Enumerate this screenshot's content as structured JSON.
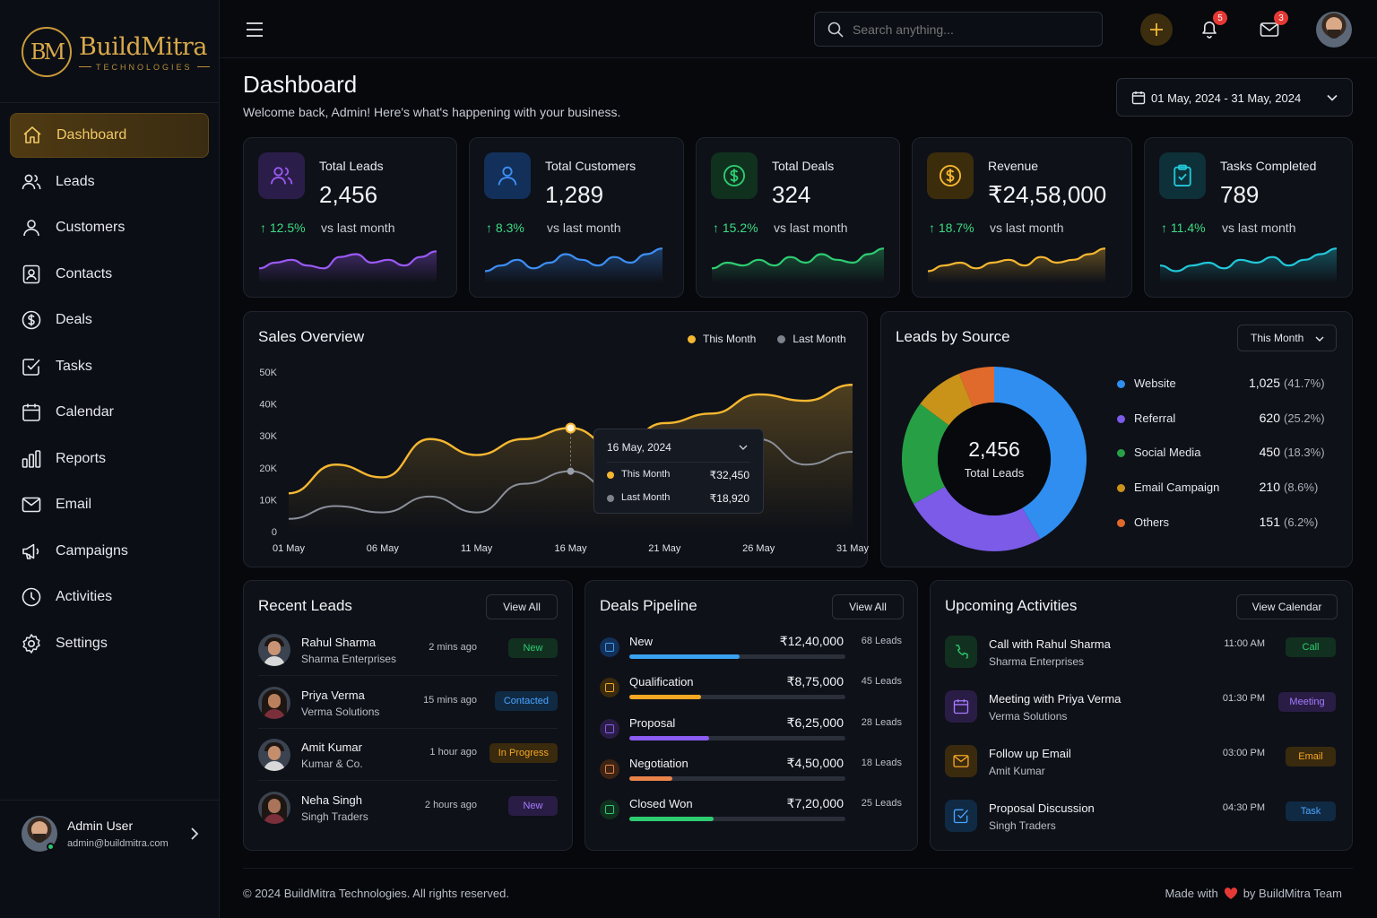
{
  "brand": {
    "title": "BuildMitra",
    "subtitle": "TECHNOLOGIES",
    "mark": "BM"
  },
  "nav": [
    {
      "label": "Dashboard",
      "icon": "home-icon",
      "active": true
    },
    {
      "label": "Leads",
      "icon": "users-icon"
    },
    {
      "label": "Customers",
      "icon": "user-icon"
    },
    {
      "label": "Contacts",
      "icon": "contact-card-icon"
    },
    {
      "label": "Deals",
      "icon": "dollar-circle-icon"
    },
    {
      "label": "Tasks",
      "icon": "checkbox-icon"
    },
    {
      "label": "Calendar",
      "icon": "calendar-icon"
    },
    {
      "label": "Reports",
      "icon": "bar-chart-icon"
    },
    {
      "label": "Email",
      "icon": "mail-icon"
    },
    {
      "label": "Campaigns",
      "icon": "megaphone-icon"
    },
    {
      "label": "Activities",
      "icon": "clock-icon"
    },
    {
      "label": "Settings",
      "icon": "gear-icon"
    }
  ],
  "user": {
    "name": "Admin User",
    "email": "admin@buildmitra.com"
  },
  "topbar": {
    "search_placeholder": "Search anything...",
    "notifications_count": "5",
    "messages_count": "3"
  },
  "header": {
    "title": "Dashboard",
    "subtitle": "Welcome back, Admin! Here's what's happening with your business.",
    "date_range": "01 May, 2024 - 31 May, 2024"
  },
  "stats": [
    {
      "label": "Total Leads",
      "value": "2,456",
      "change": "12.5%",
      "vs": "vs last month",
      "color": "#9b59f5",
      "icon": "users-icon"
    },
    {
      "label": "Total Customers",
      "value": "1,289",
      "change": "8.3%",
      "vs": "vs last month",
      "color": "#3d8ff5",
      "icon": "user-icon"
    },
    {
      "label": "Total Deals",
      "value": "324",
      "change": "15.2%",
      "vs": "vs last month",
      "color": "#2ecc71",
      "icon": "dollar-circle-icon"
    },
    {
      "label": "Revenue",
      "value": "₹24,58,000",
      "change": "18.7%",
      "vs": "vs last month",
      "color": "#f5b731",
      "icon": "dollar-circle-icon"
    },
    {
      "label": "Tasks Completed",
      "value": "789",
      "change": "11.4%",
      "vs": "vs last month",
      "color": "#22c7d9",
      "icon": "clipboard-check-icon"
    }
  ],
  "sales": {
    "title": "Sales Overview",
    "legend_this": "This Month",
    "legend_last": "Last Month",
    "tooltip": {
      "date": "16 May, 2024",
      "this_label": "This Month",
      "this_value": "₹32,450",
      "last_label": "Last Month",
      "last_value": "₹18,920"
    }
  },
  "chart_data": {
    "type": "line",
    "x": [
      "01 May",
      "03 May",
      "06 May",
      "08 May",
      "11 May",
      "14 May",
      "16 May",
      "18 May",
      "21 May",
      "23 May",
      "26 May",
      "28 May",
      "31 May"
    ],
    "xticks": [
      "01 May",
      "06 May",
      "11 May",
      "16 May",
      "21 May",
      "26 May",
      "31 May"
    ],
    "yticks": [
      "0",
      "10K",
      "20K",
      "30K",
      "40K",
      "50K"
    ],
    "ylim": [
      0,
      50000
    ],
    "series": [
      {
        "name": "This Month",
        "color": "#f5b731",
        "values": [
          12000,
          21000,
          17000,
          29000,
          24000,
          29000,
          32450,
          26000,
          34000,
          37000,
          43000,
          41000,
          46000
        ]
      },
      {
        "name": "Last Month",
        "color": "#8a8f99",
        "values": [
          4000,
          8000,
          6000,
          11000,
          6000,
          15000,
          18920,
          12000,
          21000,
          18000,
          29000,
          21000,
          25000
        ]
      }
    ]
  },
  "leads_source": {
    "title": "Leads by Source",
    "filter": "This Month",
    "total": "2,456",
    "total_label": "Total Leads",
    "items": [
      {
        "name": "Website",
        "value": "1,025",
        "pct": "(41.7%)",
        "color": "#2f8ef0",
        "fraction": 0.417
      },
      {
        "name": "Referral",
        "value": "620",
        "pct": "(25.2%)",
        "color": "#7b5be8",
        "fraction": 0.252
      },
      {
        "name": "Social Media",
        "value": "450",
        "pct": "(18.3%)",
        "color": "#27a045",
        "fraction": 0.183
      },
      {
        "name": "Email Campaign",
        "value": "210",
        "pct": "(8.6%)",
        "color": "#c9931a",
        "fraction": 0.086
      },
      {
        "name": "Others",
        "value": "151",
        "pct": "(6.2%)",
        "color": "#e06a2c",
        "fraction": 0.062
      }
    ]
  },
  "recent_leads": {
    "title": "Recent Leads",
    "view_all": "View All",
    "rows": [
      {
        "name": "Rahul Sharma",
        "company": "Sharma Enterprises",
        "time": "2 mins ago",
        "status": "New",
        "status_color": "#2ecc71",
        "status_bg": "#12301f"
      },
      {
        "name": "Priya Verma",
        "company": "Verma Solutions",
        "time": "15 mins ago",
        "status": "Contacted",
        "status_color": "#4aa3ff",
        "status_bg": "#102a44"
      },
      {
        "name": "Amit Kumar",
        "company": "Kumar & Co.",
        "time": "1 hour ago",
        "status": "In Progress",
        "status_color": "#f5a623",
        "status_bg": "#3a2a0e"
      },
      {
        "name": "Neha Singh",
        "company": "Singh Traders",
        "time": "2 hours ago",
        "status": "New",
        "status_color": "#a57bff",
        "status_bg": "#2a1d45"
      }
    ]
  },
  "pipeline": {
    "title": "Deals Pipeline",
    "view_all": "View All",
    "rows": [
      {
        "stage": "New",
        "amount": "₹12,40,000",
        "leads": "68 Leads",
        "color": "#3aa0f0",
        "progress": 0.51
      },
      {
        "stage": "Qualification",
        "amount": "₹8,75,000",
        "leads": "45 Leads",
        "color": "#f5a623",
        "progress": 0.33
      },
      {
        "stage": "Proposal",
        "amount": "₹6,25,000",
        "leads": "28 Leads",
        "color": "#8a5cf0",
        "progress": 0.37
      },
      {
        "stage": "Negotiation",
        "amount": "₹4,50,000",
        "leads": "18 Leads",
        "color": "#e8834a",
        "progress": 0.2
      },
      {
        "stage": "Closed Won",
        "amount": "₹7,20,000",
        "leads": "25 Leads",
        "color": "#2ecc71",
        "progress": 0.39
      }
    ]
  },
  "activities": {
    "title": "Upcoming Activities",
    "view_calendar": "View Calendar",
    "rows": [
      {
        "title": "Call with Rahul Sharma",
        "sub": "Sharma Enterprises",
        "time": "11:00 AM",
        "tag": "Call",
        "color": "#2ecc71",
        "bg": "#12301f",
        "icon": "phone-icon"
      },
      {
        "title": "Meeting with Priya Verma",
        "sub": "Verma Solutions",
        "time": "01:30 PM",
        "tag": "Meeting",
        "color": "#a57bff",
        "bg": "#2a1d45",
        "icon": "calendar-icon"
      },
      {
        "title": "Follow up Email",
        "sub": "Amit Kumar",
        "time": "03:00 PM",
        "tag": "Email",
        "color": "#f5a623",
        "bg": "#3a2a0e",
        "icon": "mail-icon"
      },
      {
        "title": "Proposal Discussion",
        "sub": "Singh Traders",
        "time": "04:30 PM",
        "tag": "Task",
        "color": "#4aa3ff",
        "bg": "#102a44",
        "icon": "checkbox-icon"
      }
    ]
  },
  "footer": {
    "copyright": "© 2024 BuildMitra Technologies. All rights reserved.",
    "made_with": "Made with",
    "by": "by BuildMitra Team"
  }
}
